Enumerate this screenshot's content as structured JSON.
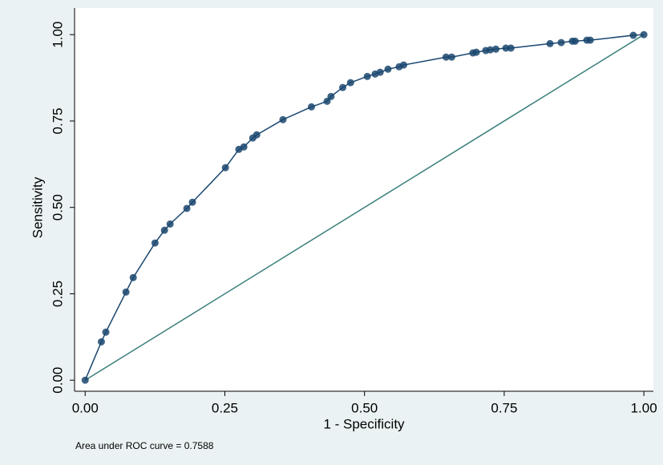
{
  "chart_data": {
    "type": "line",
    "xlabel": "1 - Specificity",
    "ylabel": "Sensitivity",
    "annotation": "Area under ROC curve = 0.7588",
    "xlim": [
      -0.019,
      1.017
    ],
    "ylim": [
      -0.032,
      1.077
    ],
    "xticks": [
      {
        "value": 0,
        "label": "0.00"
      },
      {
        "value": 0.25,
        "label": "0.25"
      },
      {
        "value": 0.5,
        "label": "0.50"
      },
      {
        "value": 0.75,
        "label": "0.75"
      },
      {
        "value": 1,
        "label": "1.00"
      }
    ],
    "yticks": [
      {
        "value": 0,
        "label": "0.00"
      },
      {
        "value": 0.25,
        "label": "0.25"
      },
      {
        "value": 0.5,
        "label": "0.50"
      },
      {
        "value": 0.75,
        "label": "0.75"
      },
      {
        "value": 1,
        "label": "1.00"
      }
    ],
    "series": [
      {
        "color": "#1a476f",
        "markers": true,
        "x": [
          0,
          0.029,
          0.037,
          0.073,
          0.086,
          0.125,
          0.142,
          0.152,
          0.182,
          0.192,
          0.251,
          0.275,
          0.284,
          0.3,
          0.307,
          0.354,
          0.405,
          0.433,
          0.44,
          0.461,
          0.475,
          0.505,
          0.519,
          0.528,
          0.542,
          0.562,
          0.57,
          0.646,
          0.656,
          0.694,
          0.7,
          0.717,
          0.725,
          0.735,
          0.753,
          0.762,
          0.832,
          0.852,
          0.872,
          0.877,
          0.898,
          0.904,
          0.981,
          1
        ],
        "values": [
          0,
          0.111,
          0.139,
          0.255,
          0.297,
          0.397,
          0.434,
          0.452,
          0.497,
          0.515,
          0.615,
          0.668,
          0.675,
          0.701,
          0.71,
          0.754,
          0.791,
          0.807,
          0.821,
          0.847,
          0.861,
          0.879,
          0.886,
          0.891,
          0.9,
          0.907,
          0.912,
          0.935,
          0.935,
          0.947,
          0.949,
          0.954,
          0.956,
          0.958,
          0.961,
          0.961,
          0.974,
          0.977,
          0.981,
          0.981,
          0.984,
          0.984,
          0.998,
          1
        ]
      },
      {
        "color": "#3a7f7a",
        "markers": false,
        "x": [
          0,
          1
        ],
        "values": [
          0,
          1
        ]
      }
    ]
  }
}
